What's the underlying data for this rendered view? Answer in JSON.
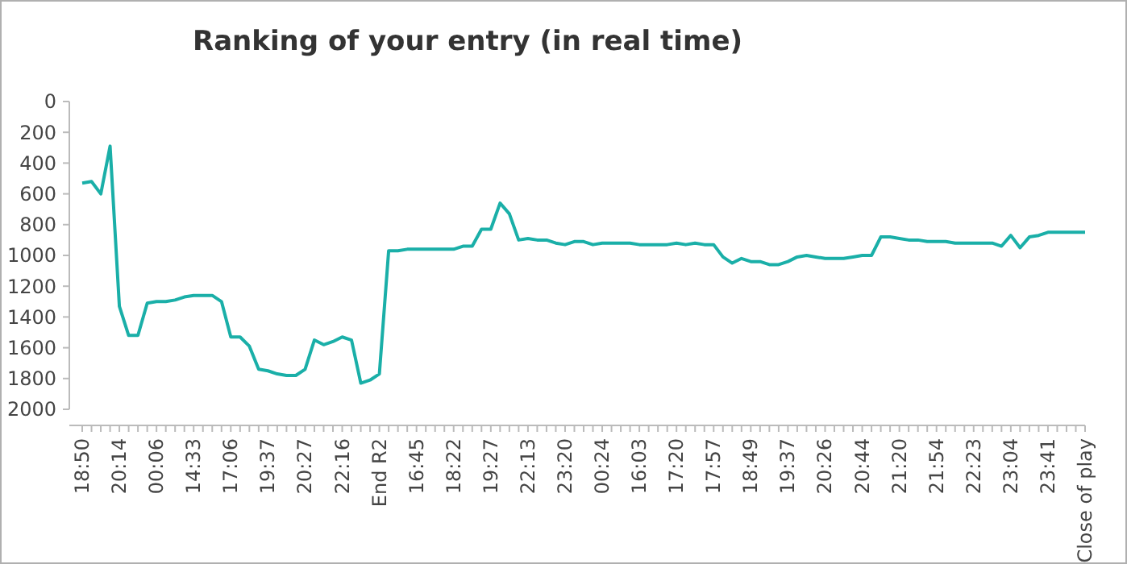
{
  "chart_data": {
    "type": "line",
    "title": "Ranking of your entry (in real time)",
    "categories": [
      "18:50",
      null,
      null,
      null,
      "20:14",
      null,
      null,
      null,
      "00:06",
      null,
      null,
      null,
      "14:33",
      null,
      null,
      null,
      "17:06",
      null,
      null,
      null,
      "19:37",
      null,
      null,
      null,
      "20:27",
      null,
      null,
      null,
      "22:16",
      null,
      null,
      null,
      "End R2",
      null,
      null,
      null,
      "16:45",
      null,
      null,
      null,
      "18:22",
      null,
      null,
      null,
      "19:27",
      null,
      null,
      null,
      "22:13",
      null,
      null,
      null,
      "23:20",
      null,
      null,
      null,
      "00:24",
      null,
      null,
      null,
      "16:03",
      null,
      null,
      null,
      "17:20",
      null,
      null,
      null,
      "17:57",
      null,
      null,
      null,
      "18:49",
      null,
      null,
      null,
      "19:37",
      null,
      null,
      null,
      "20:26",
      null,
      null,
      null,
      "20:44",
      null,
      null,
      null,
      "21:20",
      null,
      null,
      null,
      "21:54",
      null,
      null,
      null,
      "22:23",
      null,
      null,
      null,
      "23:04",
      null,
      null,
      null,
      "23:41",
      null,
      null,
      null,
      "Close of play"
    ],
    "series": [
      {
        "color": "#1aafa8",
        "values": [
          530,
          520,
          600,
          290,
          1330,
          1520,
          1520,
          1310,
          1300,
          1300,
          1290,
          1270,
          1260,
          1260,
          1260,
          1300,
          1530,
          1530,
          1590,
          1740,
          1750,
          1770,
          1780,
          1780,
          1740,
          1550,
          1580,
          1560,
          1530,
          1550,
          1830,
          1810,
          1770,
          970,
          970,
          960,
          960,
          960,
          960,
          960,
          960,
          940,
          940,
          830,
          830,
          660,
          730,
          900,
          890,
          900,
          900,
          920,
          930,
          910,
          910,
          930,
          920,
          920,
          920,
          920,
          930,
          930,
          930,
          930,
          920,
          930,
          920,
          930,
          930,
          1010,
          1050,
          1020,
          1040,
          1040,
          1060,
          1060,
          1040,
          1010,
          1000,
          1010,
          1020,
          1020,
          1020,
          1010,
          1000,
          1000,
          880,
          880,
          890,
          900,
          900,
          910,
          910,
          910,
          920,
          920,
          920,
          920,
          920,
          940,
          870,
          950,
          880,
          870,
          850,
          850,
          850,
          850,
          850
        ]
      }
    ],
    "ylim": [
      2000,
      0
    ],
    "yticks": [
      0,
      200,
      400,
      600,
      800,
      1000,
      1200,
      1400,
      1600,
      1800,
      2000
    ],
    "line_style": "solid"
  }
}
